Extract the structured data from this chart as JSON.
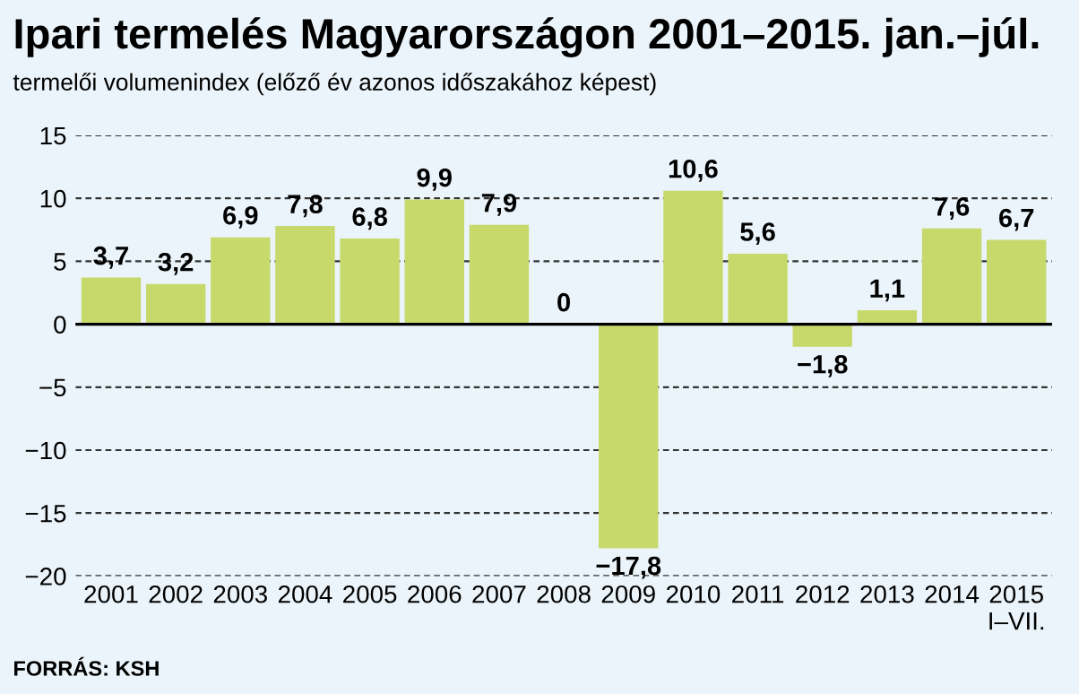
{
  "chart_data": {
    "type": "bar",
    "title": "Ipari termelés Magyarországon 2001–2015. jan.–júl.",
    "subtitle": "termelői volumenindex (előző év azonos időszakához képest)",
    "categories": [
      "2001",
      "2002",
      "2003",
      "2004",
      "2005",
      "2006",
      "2007",
      "2008",
      "2009",
      "2010",
      "2011",
      "2012",
      "2013",
      "2014",
      "2015\nI–VII."
    ],
    "values": [
      3.7,
      3.2,
      6.9,
      7.8,
      6.8,
      9.9,
      7.9,
      0,
      -17.8,
      10.6,
      5.6,
      -1.8,
      1.1,
      7.6,
      6.7
    ],
    "value_labels": [
      "3,7",
      "3,2",
      "6,9",
      "7,8",
      "6,8",
      "9,9",
      "7,9",
      "0",
      "−17,8",
      "10,6",
      "5,6",
      "−1,8",
      "1,1",
      "7,6",
      "6,7"
    ],
    "color": "#c8d96b",
    "ylim": [
      -20,
      15
    ],
    "yticks": [
      {
        "value": -20,
        "label": "−20"
      },
      {
        "value": -15,
        "label": "−15"
      },
      {
        "value": -10,
        "label": "−10"
      },
      {
        "value": -5,
        "label": "−5"
      },
      0,
      5,
      10,
      15
    ],
    "grid": "y",
    "annotations": [
      "FORRÁS: KSH"
    ]
  }
}
